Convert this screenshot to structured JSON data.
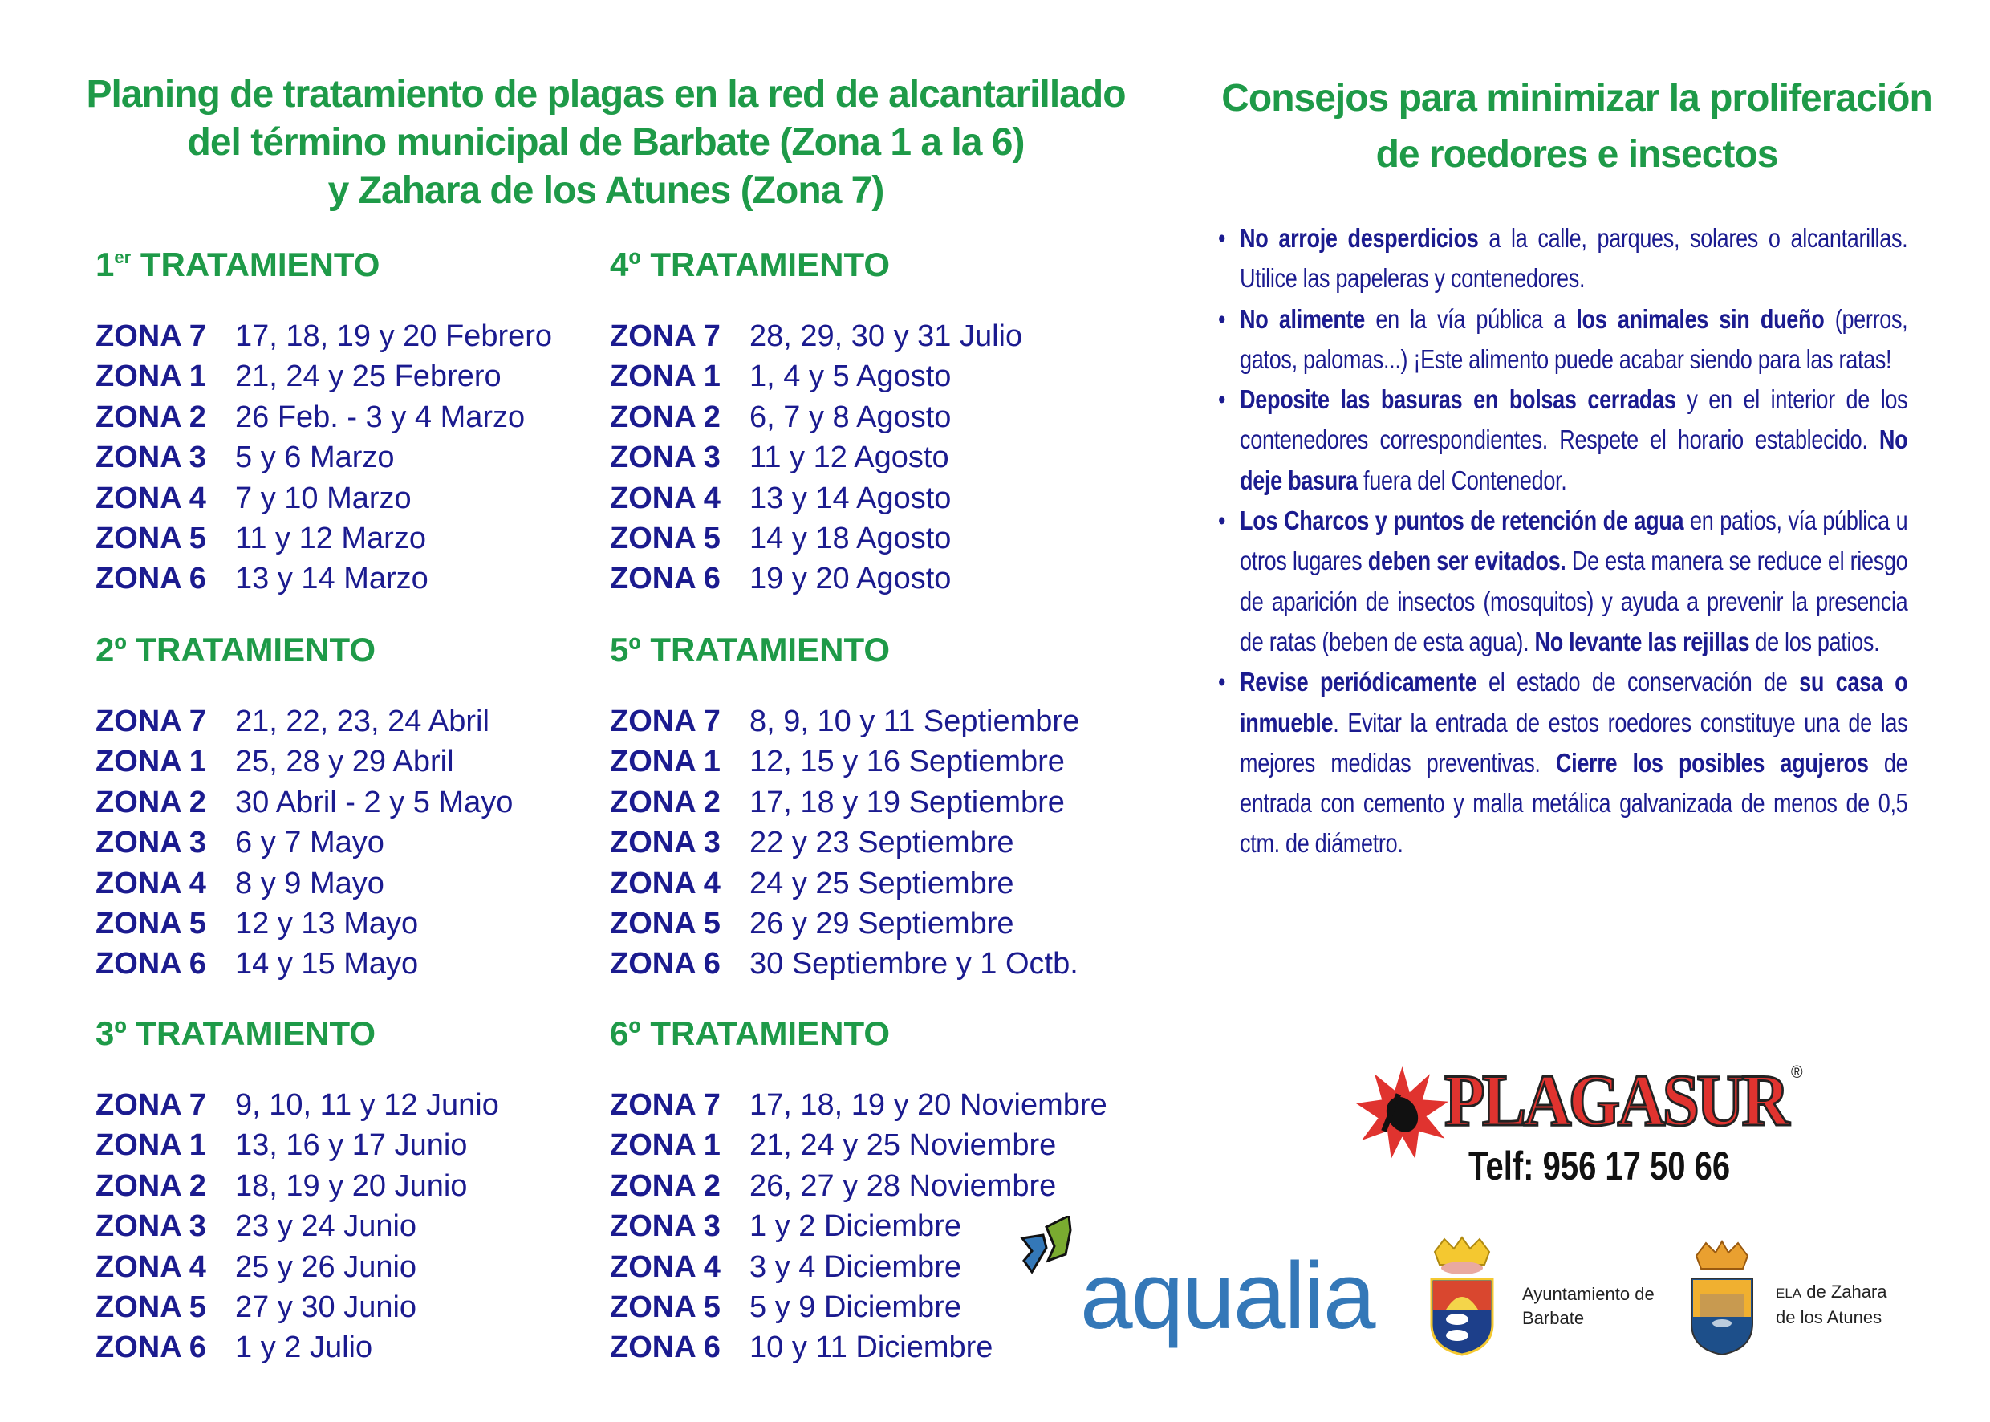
{
  "header": {
    "title_lines": [
      "Planing de tratamiento de plagas en la red de alcantarillado",
      "del término municipal de Barbate (Zona 1 a la 6)",
      "y Zahara de los Atunes (Zona 7)"
    ]
  },
  "treatments": [
    {
      "num": "1",
      "sup": "er",
      "label": "TRATAMIENTO",
      "rows": [
        {
          "zone": "ZONA 7",
          "dates": "17, 18, 19 y 20 Febrero"
        },
        {
          "zone": "ZONA 1",
          "dates": "21, 24 y 25 Febrero"
        },
        {
          "zone": "ZONA 2",
          "dates": "26 Feb. - 3 y 4 Marzo"
        },
        {
          "zone": "ZONA 3",
          "dates": "5 y 6 Marzo"
        },
        {
          "zone": "ZONA 4",
          "dates": "7 y 10 Marzo"
        },
        {
          "zone": "ZONA 5",
          "dates": "11 y 12 Marzo"
        },
        {
          "zone": "ZONA 6",
          "dates": "13 y 14 Marzo"
        }
      ]
    },
    {
      "num": "2º",
      "sup": "",
      "label": "TRATAMIENTO",
      "rows": [
        {
          "zone": "ZONA 7",
          "dates": "21, 22, 23, 24 Abril"
        },
        {
          "zone": "ZONA 1",
          "dates": "25, 28 y 29 Abril"
        },
        {
          "zone": "ZONA 2",
          "dates": "30 Abril - 2 y 5 Mayo"
        },
        {
          "zone": "ZONA 3",
          "dates": "6 y 7 Mayo"
        },
        {
          "zone": "ZONA 4",
          "dates": "8 y 9 Mayo"
        },
        {
          "zone": "ZONA 5",
          "dates": "12 y 13 Mayo"
        },
        {
          "zone": "ZONA 6",
          "dates": "14 y 15 Mayo"
        }
      ]
    },
    {
      "num": "3º",
      "sup": "",
      "label": "TRATAMIENTO",
      "rows": [
        {
          "zone": "ZONA 7",
          "dates": "9, 10, 11 y 12 Junio"
        },
        {
          "zone": "ZONA 1",
          "dates": "13, 16 y 17 Junio"
        },
        {
          "zone": "ZONA 2",
          "dates": "18, 19 y 20 Junio"
        },
        {
          "zone": "ZONA 3",
          "dates": "23 y 24 Junio"
        },
        {
          "zone": "ZONA 4",
          "dates": "25 y 26 Junio"
        },
        {
          "zone": "ZONA 5",
          "dates": "27 y 30 Junio"
        },
        {
          "zone": "ZONA 6",
          "dates": "1 y 2 Julio"
        }
      ]
    },
    {
      "num": "4º",
      "sup": "",
      "label": "TRATAMIENTO",
      "rows": [
        {
          "zone": "ZONA 7",
          "dates": "28, 29, 30 y 31 Julio"
        },
        {
          "zone": "ZONA 1",
          "dates": "1, 4 y 5 Agosto"
        },
        {
          "zone": "ZONA 2",
          "dates": "6, 7 y 8 Agosto"
        },
        {
          "zone": "ZONA 3",
          "dates": "11 y 12 Agosto"
        },
        {
          "zone": "ZONA 4",
          "dates": "13 y 14 Agosto"
        },
        {
          "zone": "ZONA 5",
          "dates": "14 y 18 Agosto"
        },
        {
          "zone": "ZONA 6",
          "dates": "19 y 20 Agosto"
        }
      ]
    },
    {
      "num": "5º",
      "sup": "",
      "label": "TRATAMIENTO",
      "rows": [
        {
          "zone": "ZONA 7",
          "dates": "8, 9, 10 y 11 Septiembre"
        },
        {
          "zone": "ZONA 1",
          "dates": "12, 15 y 16 Septiembre"
        },
        {
          "zone": "ZONA 2",
          "dates": "17, 18 y 19 Septiembre"
        },
        {
          "zone": "ZONA 3",
          "dates": "22 y 23 Septiembre"
        },
        {
          "zone": "ZONA 4",
          "dates": "24 y 25 Septiembre"
        },
        {
          "zone": "ZONA 5",
          "dates": "26 y 29 Septiembre"
        },
        {
          "zone": "ZONA 6",
          "dates": "30 Septiembre y 1 Octb."
        }
      ]
    },
    {
      "num": "6º",
      "sup": "",
      "label": "TRATAMIENTO",
      "rows": [
        {
          "zone": "ZONA 7",
          "dates": "17, 18, 19 y 20 Noviembre"
        },
        {
          "zone": "ZONA 1",
          "dates": "21, 24 y 25 Noviembre"
        },
        {
          "zone": "ZONA 2",
          "dates": "26, 27 y 28 Noviembre"
        },
        {
          "zone": "ZONA 3",
          "dates": "1 y 2 Diciembre"
        },
        {
          "zone": "ZONA 4",
          "dates": "3 y 4 Diciembre"
        },
        {
          "zone": "ZONA 5",
          "dates": "5 y 9 Diciembre"
        },
        {
          "zone": "ZONA 6",
          "dates": "10 y 11 Diciembre"
        }
      ]
    }
  ],
  "tips": {
    "title_lines": [
      "Consejos para minimizar la proliferación",
      "de roedores e insectos"
    ],
    "bullet": "•",
    "items": [
      [
        {
          "b": true,
          "t": "No arroje desperdicios"
        },
        {
          "b": false,
          "t": " a la calle, parques, solares o alcantarillas. Utilice las papeleras y contenedores."
        }
      ],
      [
        {
          "b": true,
          "t": "No alimente"
        },
        {
          "b": false,
          "t": " en la vía pública a "
        },
        {
          "b": true,
          "t": "los animales sin dueño"
        },
        {
          "b": false,
          "t": " (perros, gatos, palomas...) ¡Este alimento puede acabar siendo para las ratas!"
        }
      ],
      [
        {
          "b": true,
          "t": "Deposite las basuras en bolsas cerradas"
        },
        {
          "b": false,
          "t": " y en el interior de los contenedores correspondientes. Respete el horario establecido. "
        },
        {
          "b": true,
          "t": "No deje basura"
        },
        {
          "b": false,
          "t": " fuera del Contenedor."
        }
      ],
      [
        {
          "b": true,
          "t": "Los Charcos y puntos de retención de agua"
        },
        {
          "b": false,
          "t": " en patios, vía pública u otros lugares "
        },
        {
          "b": true,
          "t": "deben ser evitados."
        },
        {
          "b": false,
          "t": " De esta manera se reduce el riesgo de aparición de insectos (mosquitos) y ayuda a prevenir la presencia de ratas (beben de esta agua). "
        },
        {
          "b": true,
          "t": "No levante las rejillas"
        },
        {
          "b": false,
          "t": " de los patios."
        }
      ],
      [
        {
          "b": true,
          "t": "Revise periódicamente"
        },
        {
          "b": false,
          "t": " el estado de conservación de "
        },
        {
          "b": true,
          "t": "su casa o inmueble"
        },
        {
          "b": false,
          "t": ". Evitar la entrada de estos roedores constituye una de las mejores medidas preventivas. "
        },
        {
          "b": true,
          "t": "Cierre los posibles agujeros"
        },
        {
          "b": false,
          "t": " de entrada con cemento y malla metálica galvanizada de menos de 0,5 ctm. de diámetro."
        }
      ]
    ]
  },
  "plagasur": {
    "name": "PLAGASUR",
    "registered": "®",
    "phone": "Telf: 956 17 50 66",
    "icon": "insect-star-icon"
  },
  "aqualia": {
    "name": "aqualia",
    "icon": "aqualia-arrows-icon"
  },
  "barbate": {
    "lines": [
      "Ayuntamiento de",
      "Barbate"
    ],
    "icon": "barbate-crest-icon"
  },
  "zahara": {
    "line1_small": "ELA",
    "line1_rest": " de Zahara",
    "line2": "de los Atunes",
    "icon": "zahara-crest-icon"
  },
  "colors": {
    "green": "#1e9a48",
    "navy": "#1b1b8f",
    "red": "#e0332f",
    "aqualia_blue": "#3478b8",
    "aqualia_green": "#7aab30"
  }
}
